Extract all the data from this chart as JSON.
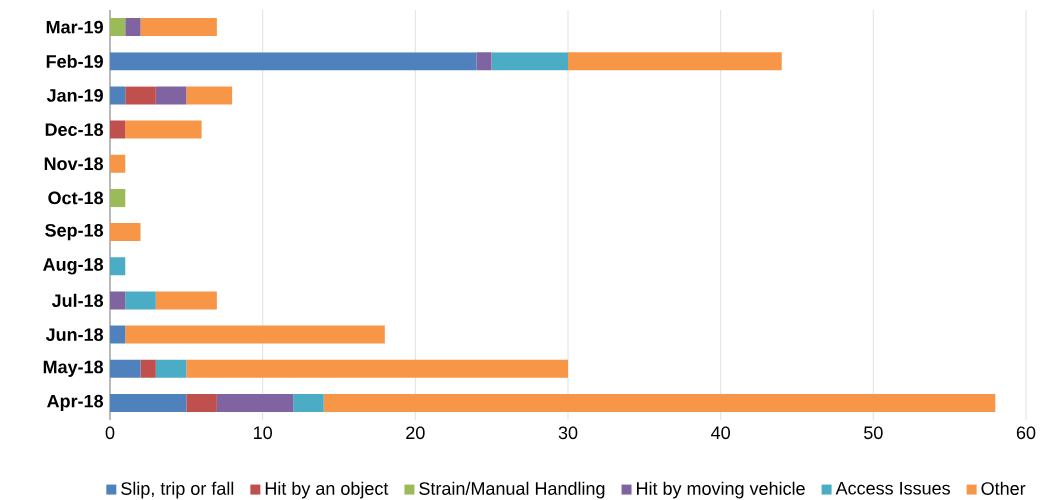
{
  "chart_data": {
    "type": "bar",
    "orientation": "horizontal",
    "stacked": true,
    "categories": [
      "Mar-19",
      "Feb-19",
      "Jan-19",
      "Dec-18",
      "Nov-18",
      "Oct-18",
      "Sep-18",
      "Aug-18",
      "Jul-18",
      "Jun-18",
      "May-18",
      "Apr-18"
    ],
    "series": [
      {
        "name": "Slip, trip or fall",
        "color": "#4f81bd",
        "values": [
          0,
          24,
          1,
          0,
          0,
          0,
          0,
          0,
          0,
          1,
          2,
          5
        ]
      },
      {
        "name": "Hit by an object",
        "color": "#c0504d",
        "values": [
          0,
          0,
          2,
          1,
          0,
          0,
          0,
          0,
          0,
          0,
          1,
          2
        ]
      },
      {
        "name": "Strain/Manual Handling",
        "color": "#9bbb59",
        "values": [
          1,
          0,
          0,
          0,
          0,
          1,
          0,
          0,
          0,
          0,
          0,
          0
        ]
      },
      {
        "name": "Hit by moving vehicle",
        "color": "#8064a2",
        "values": [
          1,
          1,
          2,
          0,
          0,
          0,
          0,
          0,
          1,
          0,
          0,
          5
        ]
      },
      {
        "name": "Access Issues",
        "color": "#4bacc6",
        "values": [
          0,
          5,
          0,
          0,
          0,
          0,
          0,
          1,
          2,
          0,
          2,
          2
        ]
      },
      {
        "name": "Other",
        "color": "#f79646",
        "values": [
          5,
          14,
          3,
          5,
          1,
          0,
          2,
          0,
          4,
          17,
          25,
          44
        ]
      }
    ],
    "xlim": [
      0,
      60
    ],
    "xticks": [
      0,
      10,
      20,
      30,
      40,
      50,
      60
    ],
    "grid": "x",
    "legend": "bottom"
  }
}
